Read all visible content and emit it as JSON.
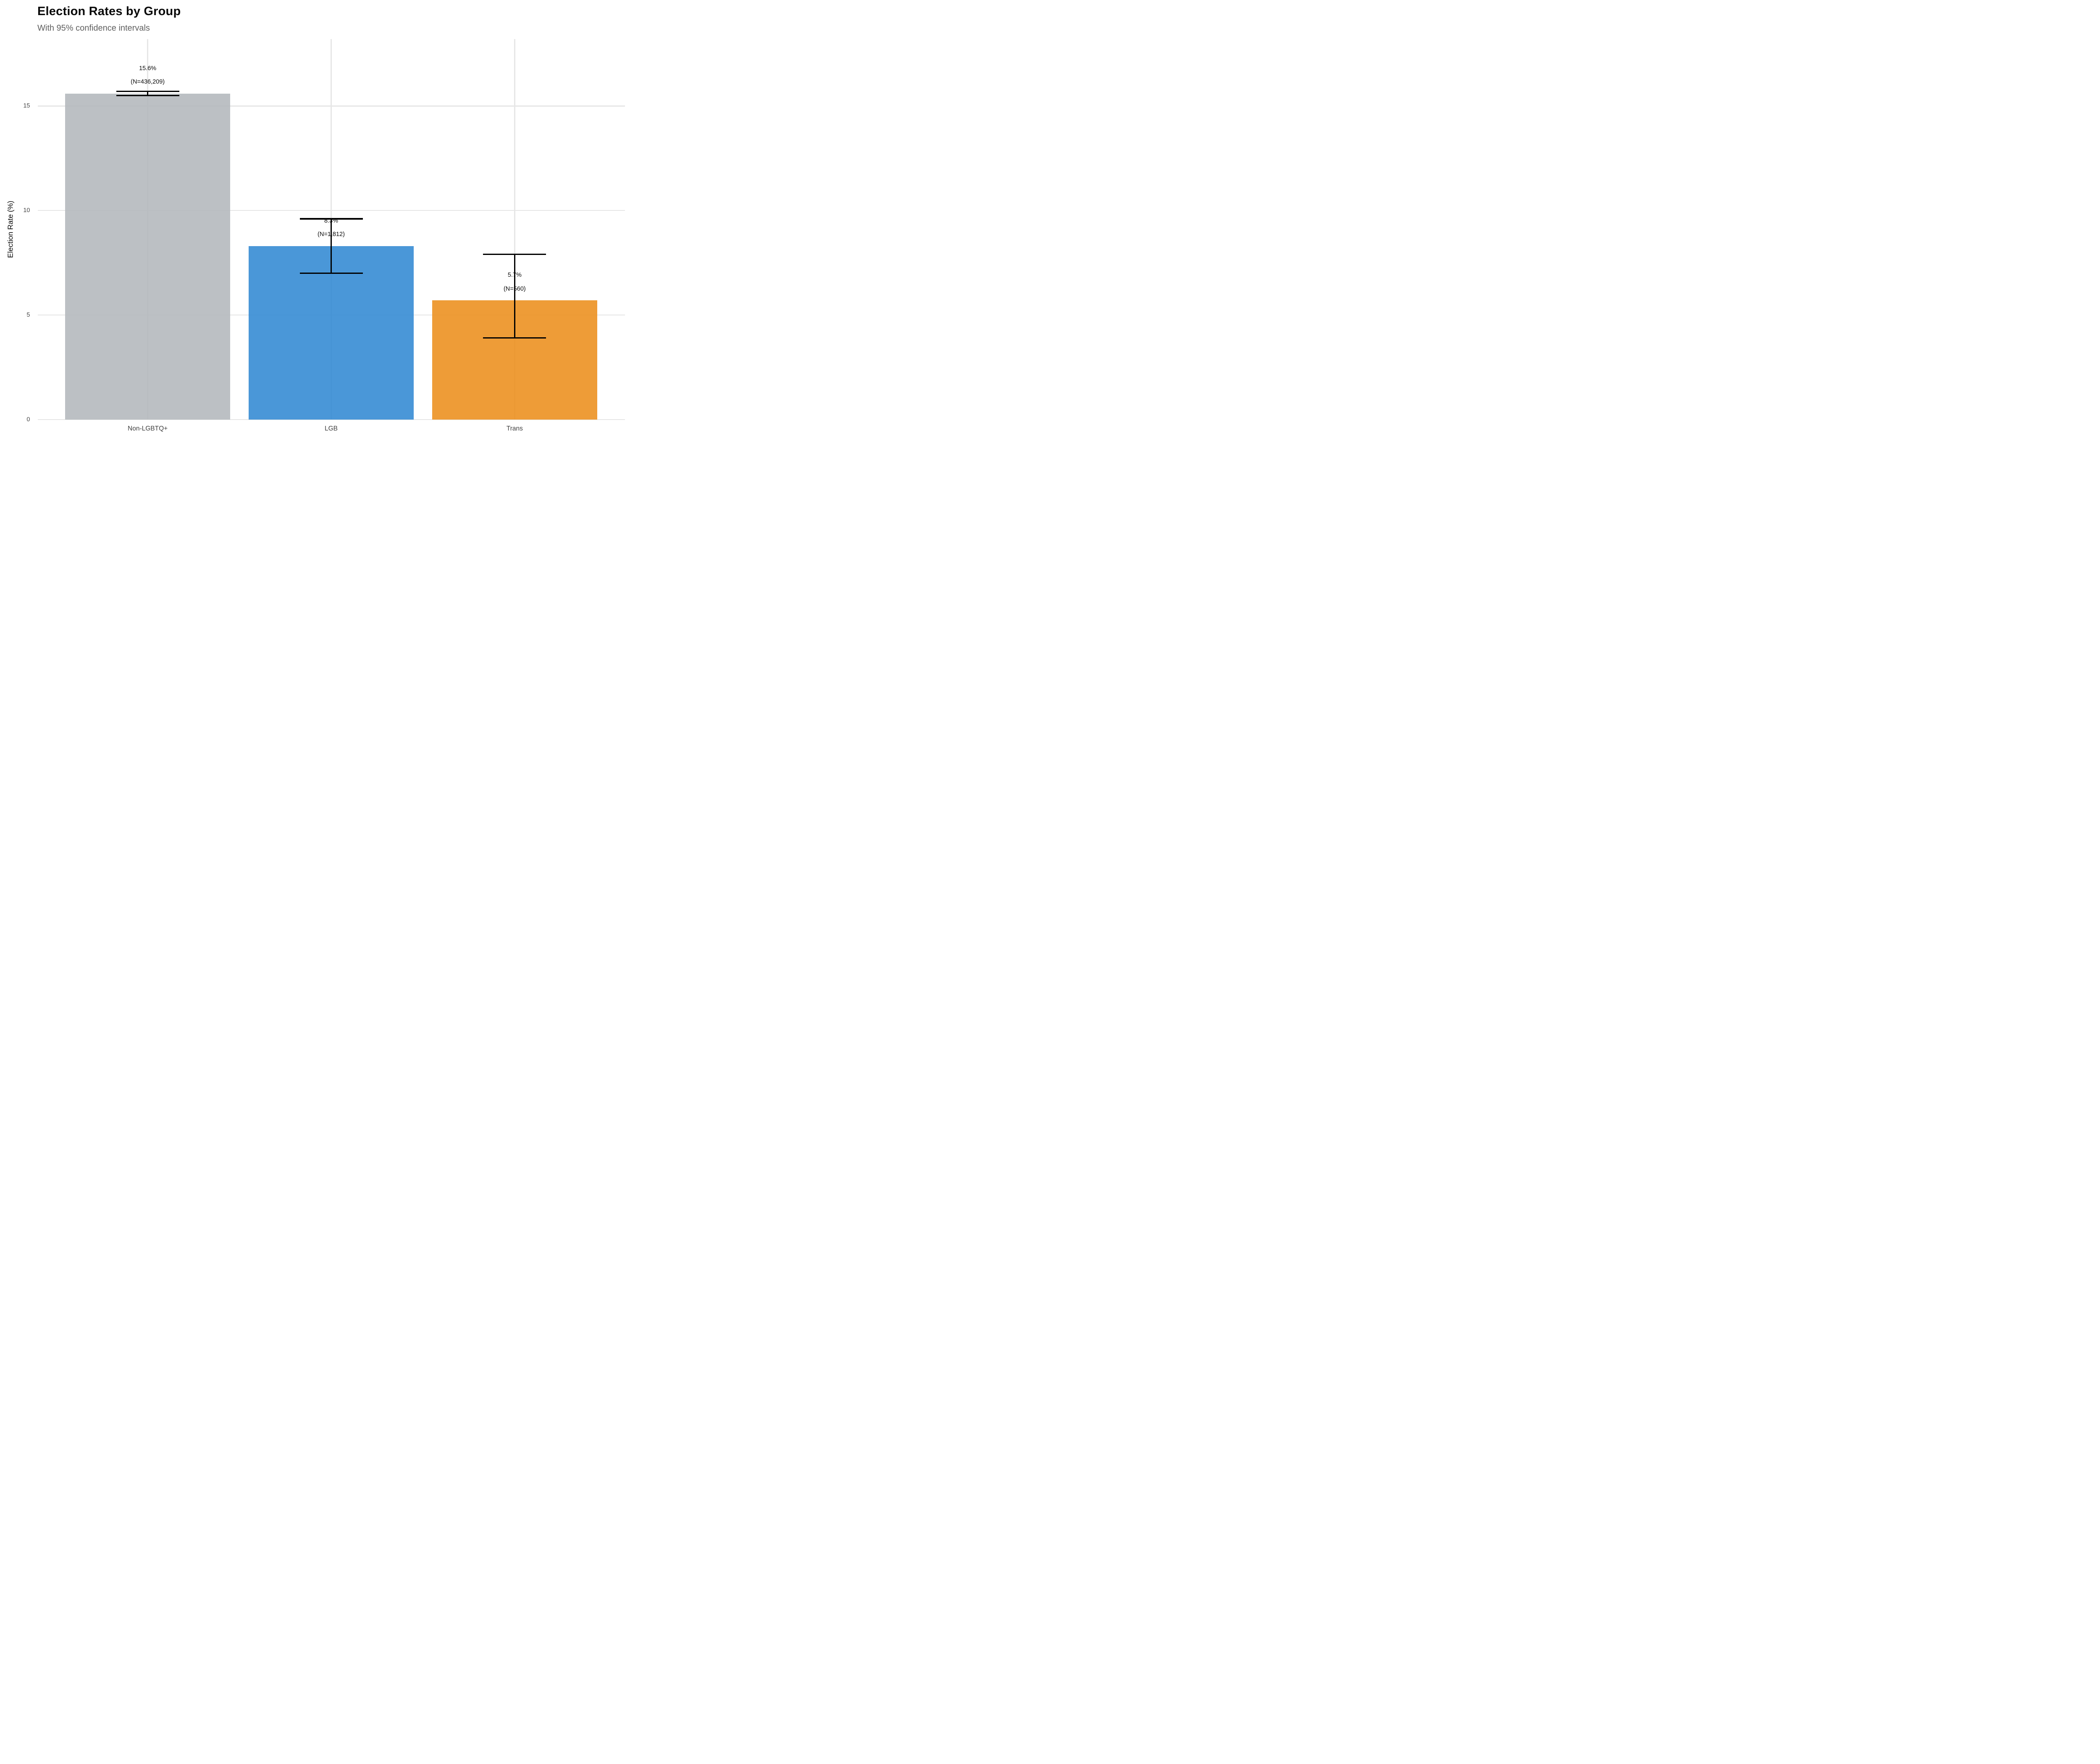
{
  "chart_data": {
    "type": "bar",
    "title": "Election Rates by Group",
    "subtitle": "With 95% confidence intervals",
    "ylabel": "Election Rate (%)",
    "xlabel": "",
    "categories": [
      "Non-LGBTQ+",
      "LGB",
      "Trans"
    ],
    "values": [
      15.6,
      8.3,
      5.7
    ],
    "value_labels": [
      "15.6%",
      "8.3%",
      "5.7%"
    ],
    "n_labels": [
      "(N=436,209)",
      "(N=1,812)",
      "(N=560)"
    ],
    "ci_low": [
      15.5,
      7.0,
      3.9
    ],
    "ci_high": [
      15.7,
      9.6,
      7.9
    ],
    "bar_colors": [
      "#b3b7bc",
      "#3189d3",
      "#ec8e1b"
    ],
    "bar_opacity": 0.88,
    "y_ticks": [
      0,
      5,
      10,
      15
    ],
    "ylim": [
      0,
      18.2
    ],
    "grid": "horizontal and vertical major gridlines, light gray, drawn under translucent bars",
    "legend": "none",
    "error_bar_color": "#000000",
    "background": "#ffffff",
    "gridline_color": "#e6e6e6",
    "text_colors": {
      "title": "#0a0a0a",
      "subtitle": "#5f5f5f",
      "axis_text": "#474747",
      "annotation": "#0a0a0a"
    }
  }
}
